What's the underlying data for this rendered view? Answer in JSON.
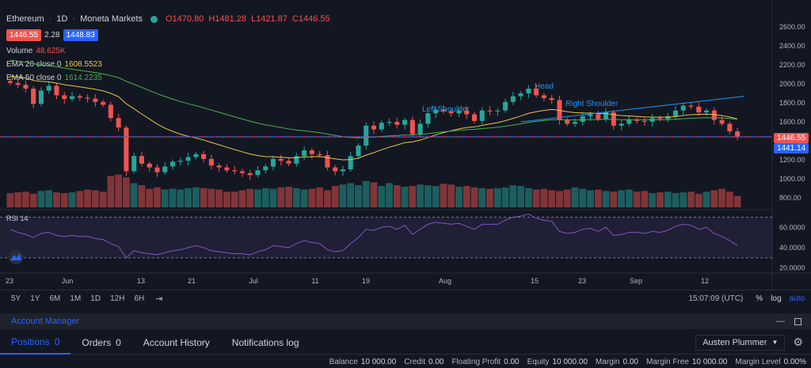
{
  "header": {
    "symbol": "Ethereum",
    "interval": "1D",
    "broker": "Moneta Markets",
    "open": "O1470.80",
    "high": "H1481.28",
    "low": "L1421.87",
    "close": "C1446.55",
    "bid": "1446.55",
    "spread": "2.28",
    "ask": "1448.83"
  },
  "indicators": {
    "volume_label": "Volume",
    "volume_value": "48.625K",
    "ema20_label": "EMA 20 close 0",
    "ema20_value": "1608.5523",
    "ema50_label": "EMA 50 close 0",
    "ema50_value": "1614.2235",
    "rsi_label": "RSI 14"
  },
  "annotations": {
    "left_shoulder": "Left Shoulder",
    "head": "Head",
    "right_shoulder": "Right Shoulder"
  },
  "price_axis": {
    "ticks": [
      "2600.00",
      "2400.00",
      "2200.00",
      "2000.00",
      "1800.00",
      "1600.00",
      "1400.00",
      "1200.00",
      "1000.00",
      "800.00"
    ],
    "current_price": "1446.55",
    "line_price": "1441.14"
  },
  "rsi_axis": {
    "ticks": [
      "60.0000",
      "40.0000",
      "20.0000"
    ]
  },
  "time_axis": {
    "labels": [
      "23",
      "Jun",
      "13",
      "21",
      "Jul",
      "11",
      "19",
      "Aug",
      "15",
      "23",
      "Sep",
      "12"
    ]
  },
  "toolbar": {
    "timeframes": [
      "5Y",
      "1Y",
      "6M",
      "1M",
      "1D",
      "12H",
      "6H"
    ],
    "clock": "15:07:09 (UTC)",
    "percent": "%",
    "log": "log",
    "auto": "auto"
  },
  "account": {
    "title": "Account Manager",
    "tabs": [
      {
        "label": "Positions",
        "count": "0"
      },
      {
        "label": "Orders",
        "count": "0"
      },
      {
        "label": "Account History",
        "count": ""
      },
      {
        "label": "Notifications log",
        "count": ""
      }
    ],
    "user": "Austen Plummer",
    "stats": [
      {
        "label": "Balance",
        "value": "10 000.00"
      },
      {
        "label": "Credit",
        "value": "0.00"
      },
      {
        "label": "Floating Profit",
        "value": "0.00"
      },
      {
        "label": "Equity",
        "value": "10 000.00"
      },
      {
        "label": "Margin",
        "value": "0.00"
      },
      {
        "label": "Margin Free",
        "value": "10 000.00"
      },
      {
        "label": "Margin Level",
        "value": "0.00%"
      }
    ]
  },
  "colors": {
    "up": "#26a69a",
    "down": "#ef5350",
    "ema20": "#e8c547",
    "ema50": "#4caf50",
    "rsi": "#7e57c2",
    "trendline": "#2196f3",
    "price_line": "#2962ff"
  },
  "chart_data": {
    "type": "candlestick",
    "closes": [
      2010,
      1990,
      1950,
      1790,
      1930,
      1980,
      1880,
      1840,
      1870,
      1855,
      1845,
      1810,
      1780,
      1640,
      1540,
      1080,
      1240,
      1160,
      1120,
      1070,
      1130,
      1180,
      1190,
      1230,
      1260,
      1210,
      1140,
      1120,
      1090,
      1080,
      1060,
      1040,
      1090,
      1130,
      1210,
      1190,
      1160,
      1240,
      1300,
      1260,
      1250,
      1120,
      1080,
      1100,
      1240,
      1350,
      1560,
      1520,
      1590,
      1600,
      1570,
      1620,
      1470,
      1580,
      1690,
      1730,
      1710,
      1690,
      1720,
      1680,
      1610,
      1720,
      1710,
      1720,
      1810,
      1870,
      1900,
      1950,
      1880,
      1850,
      1830,
      1620,
      1580,
      1600,
      1660,
      1680,
      1630,
      1700,
      1560,
      1580,
      1620,
      1610,
      1600,
      1640,
      1630,
      1660,
      1720,
      1770,
      1760,
      1700,
      1720,
      1620,
      1580,
      1500,
      1446.55
    ],
    "volumes": [
      20,
      21,
      22,
      19,
      23,
      24,
      21,
      20,
      21,
      23,
      25,
      24,
      22,
      44,
      46,
      42,
      34,
      31,
      26,
      28,
      25,
      26,
      25,
      27,
      28,
      27,
      26,
      25,
      22,
      22,
      24,
      26,
      25,
      27,
      26,
      28,
      29,
      27,
      25,
      26,
      28,
      24,
      30,
      32,
      34,
      31,
      37,
      35,
      30,
      34,
      31,
      29,
      30,
      32,
      31,
      30,
      33,
      32,
      29,
      30,
      28,
      27,
      26,
      27,
      28,
      31,
      30,
      27,
      25,
      26,
      24,
      23,
      25,
      28,
      26,
      24,
      25,
      23,
      22,
      24,
      25,
      22,
      23,
      20,
      21,
      22,
      20,
      21,
      22,
      19,
      22,
      24,
      26,
      22,
      16
    ],
    "rsi": [
      58,
      55,
      53,
      50,
      54,
      55,
      52,
      51,
      52,
      51,
      51,
      49,
      48,
      44,
      41,
      30,
      37,
      35,
      34,
      33,
      35,
      37,
      38,
      40,
      42,
      40,
      37,
      36,
      35,
      34,
      34,
      33,
      36,
      38,
      42,
      41,
      40,
      44,
      47,
      45,
      44,
      38,
      36,
      37,
      44,
      50,
      58,
      57,
      60,
      61,
      58,
      62,
      53,
      58,
      63,
      65,
      64,
      63,
      64,
      61,
      58,
      63,
      63,
      63,
      67,
      70,
      71,
      73,
      69,
      67,
      66,
      56,
      54,
      55,
      58,
      59,
      56,
      60,
      52,
      53,
      55,
      55,
      54,
      56,
      55,
      57,
      61,
      63,
      62,
      58,
      60,
      54,
      51,
      47,
      42
    ],
    "y_range": [
      700,
      2700
    ],
    "rsi_range": [
      15,
      75
    ],
    "rsi_band": [
      30,
      70
    ]
  }
}
